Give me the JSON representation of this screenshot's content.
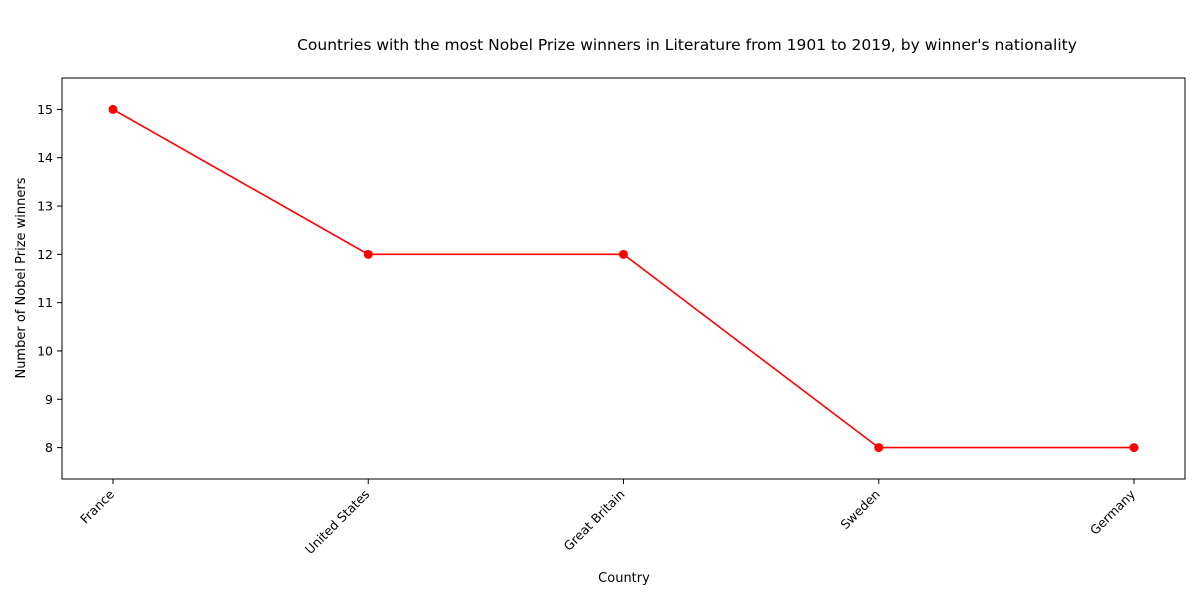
{
  "chart_data": {
    "type": "line",
    "title": "Countries with the most Nobel Prize winners in Literature from 1901 to 2019, by winner's nationality",
    "xlabel": "Country",
    "ylabel": "Number of Nobel Prize winners",
    "categories": [
      "France",
      "United States",
      "Great Britain",
      "Sweden",
      "Germany"
    ],
    "series": [
      {
        "values": [
          15,
          12,
          12,
          8,
          8
        ],
        "color": "#ff0000",
        "marker": "circle"
      }
    ],
    "ylim": [
      7.35,
      15.65
    ],
    "yticks": [
      8,
      9,
      10,
      11,
      12,
      13,
      14,
      15
    ],
    "grid": false,
    "legend": "none",
    "x_tick_rotation": 45
  }
}
